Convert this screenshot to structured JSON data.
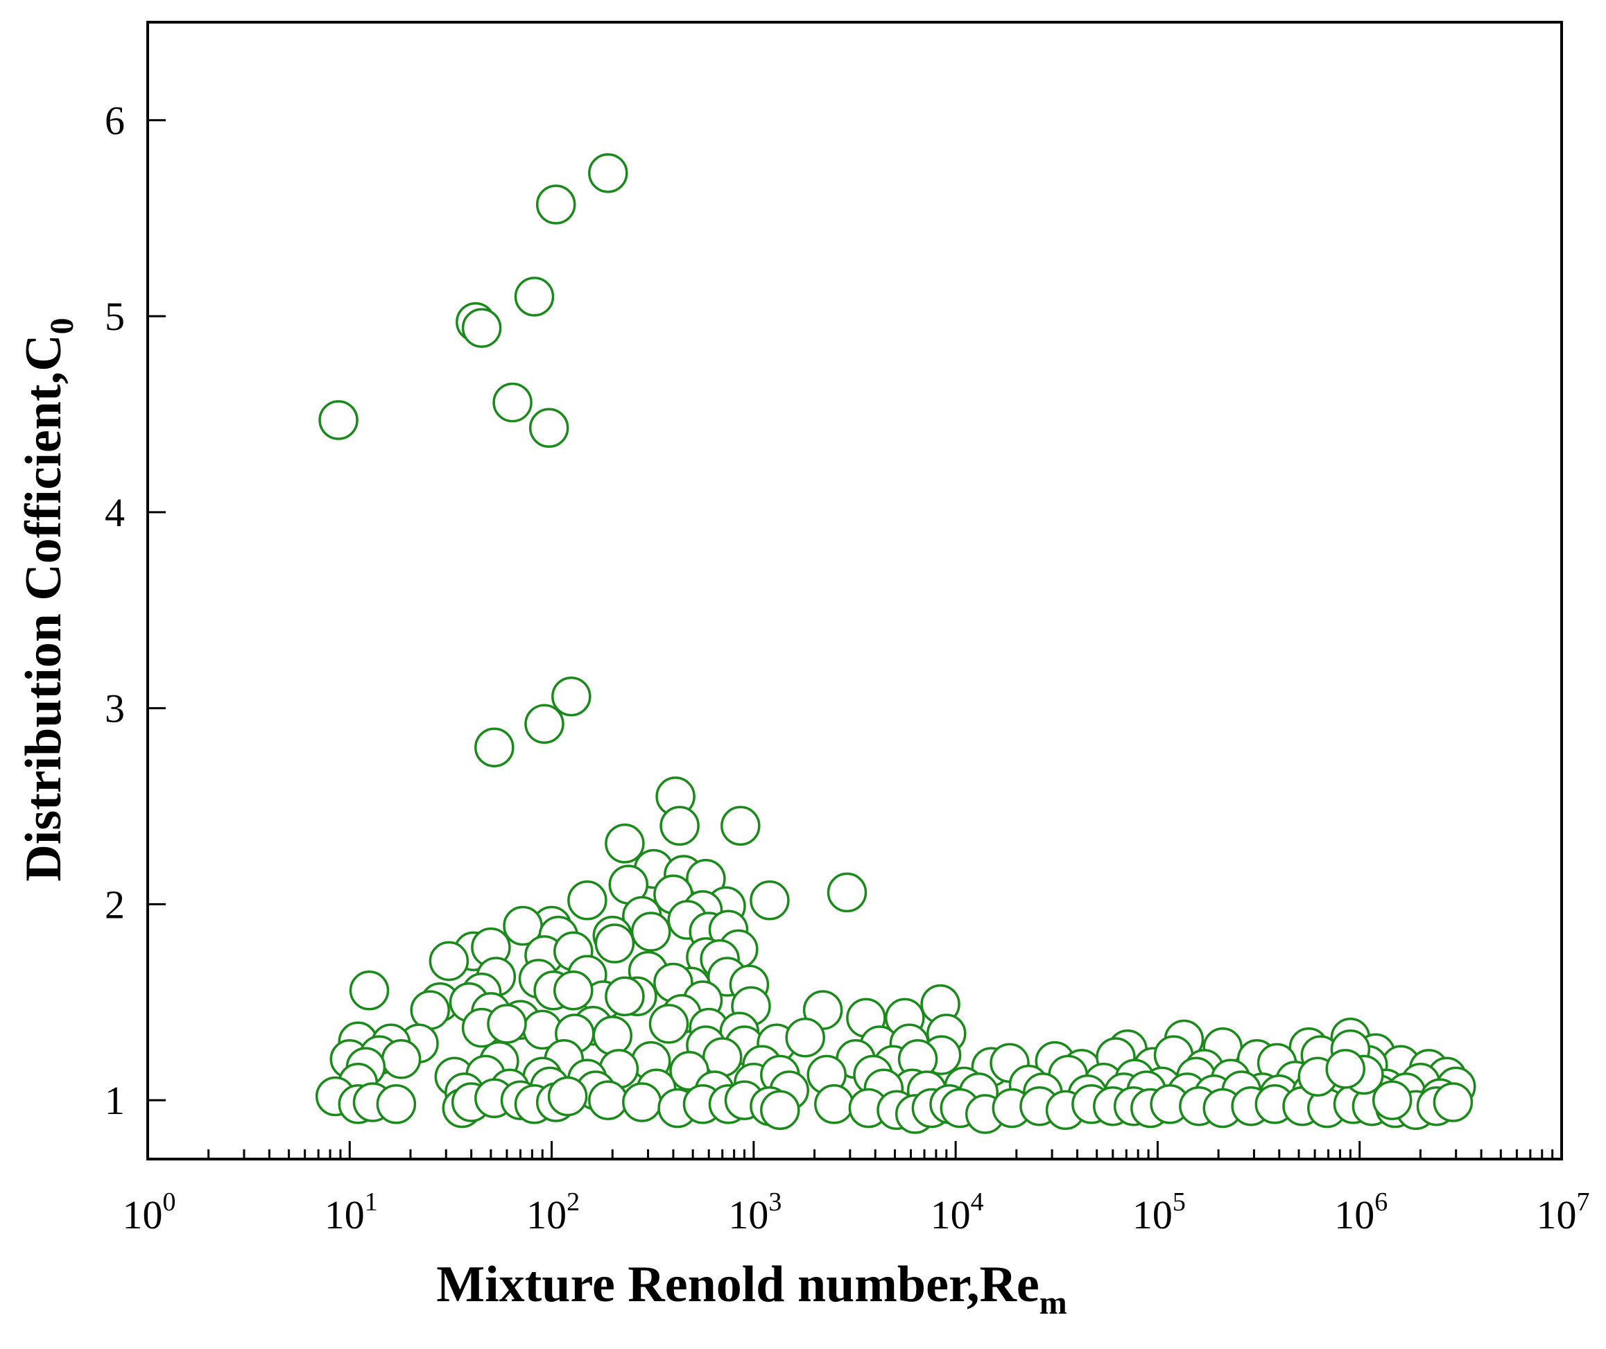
{
  "chart_data": {
    "type": "scatter",
    "title": "",
    "xlabel": "Mixture Renold number,Re",
    "xlabel_subscript": "m",
    "ylabel": "Distribution Cofficient,C",
    "ylabel_subscript": "0",
    "x_scale": "log",
    "xlim": [
      1,
      10000000
    ],
    "ylim": [
      0.7,
      6.5
    ],
    "x_ticks": [
      {
        "base": "10",
        "exp": "0",
        "value": 1
      },
      {
        "base": "10",
        "exp": "1",
        "value": 10
      },
      {
        "base": "10",
        "exp": "2",
        "value": 100
      },
      {
        "base": "10",
        "exp": "3",
        "value": 1000
      },
      {
        "base": "10",
        "exp": "4",
        "value": 10000
      },
      {
        "base": "10",
        "exp": "5",
        "value": 100000
      },
      {
        "base": "10",
        "exp": "6",
        "value": 1000000
      },
      {
        "base": "10",
        "exp": "7",
        "value": 10000000
      }
    ],
    "y_ticks": [
      {
        "label": "1",
        "value": 1
      },
      {
        "label": "2",
        "value": 2
      },
      {
        "label": "3",
        "value": 3
      },
      {
        "label": "4",
        "value": 4
      },
      {
        "label": "5",
        "value": 5
      },
      {
        "label": "6",
        "value": 6
      }
    ],
    "grid": false,
    "legend": "none",
    "marker": "open-circle",
    "marker_color": "#1a8a1a",
    "points": [
      [
        190,
        5.73
      ],
      [
        105,
        5.57
      ],
      [
        82,
        5.1
      ],
      [
        42,
        4.97
      ],
      [
        45,
        4.94
      ],
      [
        64,
        4.56
      ],
      [
        97,
        4.43
      ],
      [
        8.8,
        4.47
      ],
      [
        125,
        3.06
      ],
      [
        92,
        2.92
      ],
      [
        52,
        2.8
      ],
      [
        410,
        2.55
      ],
      [
        430,
        2.4
      ],
      [
        860,
        2.4
      ],
      [
        230,
        2.31
      ],
      [
        320,
        2.18
      ],
      [
        450,
        2.15
      ],
      [
        580,
        2.13
      ],
      [
        2900,
        2.06
      ],
      [
        240,
        2.1
      ],
      [
        400,
        2.05
      ],
      [
        150,
        2.02
      ],
      [
        1200,
        2.02
      ],
      [
        730,
        1.99
      ],
      [
        560,
        1.97
      ],
      [
        280,
        1.94
      ],
      [
        470,
        1.92
      ],
      [
        100,
        1.89
      ],
      [
        72,
        1.89
      ],
      [
        200,
        1.84
      ],
      [
        600,
        1.86
      ],
      [
        310,
        1.86
      ],
      [
        750,
        1.87
      ],
      [
        108,
        1.84
      ],
      [
        840,
        1.77
      ],
      [
        205,
        1.8
      ],
      [
        92,
        1.74
      ],
      [
        41,
        1.76
      ],
      [
        50,
        1.78
      ],
      [
        580,
        1.73
      ],
      [
        128,
        1.76
      ],
      [
        680,
        1.72
      ],
      [
        31,
        1.71
      ],
      [
        150,
        1.64
      ],
      [
        300,
        1.66
      ],
      [
        740,
        1.63
      ],
      [
        86,
        1.62
      ],
      [
        490,
        1.58
      ],
      [
        53,
        1.63
      ],
      [
        45,
        1.55
      ],
      [
        28,
        1.5
      ],
      [
        180,
        1.51
      ],
      [
        950,
        1.59
      ],
      [
        400,
        1.6
      ],
      [
        102,
        1.56
      ],
      [
        128,
        1.56
      ],
      [
        265,
        1.53
      ],
      [
        230,
        1.53
      ],
      [
        560,
        1.51
      ],
      [
        39,
        1.5
      ],
      [
        970,
        1.48
      ],
      [
        12.5,
        1.56
      ],
      [
        25,
        1.46
      ],
      [
        2200,
        1.46
      ],
      [
        8400,
        1.49
      ],
      [
        50,
        1.45
      ],
      [
        70,
        1.41
      ],
      [
        440,
        1.44
      ],
      [
        600,
        1.37
      ],
      [
        3600,
        1.42
      ],
      [
        5600,
        1.42
      ],
      [
        9000,
        1.34
      ],
      [
        90,
        1.36
      ],
      [
        160,
        1.38
      ],
      [
        45,
        1.37
      ],
      [
        380,
        1.39
      ],
      [
        60,
        1.39
      ],
      [
        850,
        1.35
      ],
      [
        200,
        1.33
      ],
      [
        130,
        1.34
      ],
      [
        22,
        1.29
      ],
      [
        11,
        1.3
      ],
      [
        16,
        1.29
      ],
      [
        580,
        1.28
      ],
      [
        900,
        1.28
      ],
      [
        1300,
        1.29
      ],
      [
        1800,
        1.32
      ],
      [
        4200,
        1.28
      ],
      [
        5900,
        1.29
      ],
      [
        8500,
        1.23
      ],
      [
        135000,
        1.31
      ],
      [
        71000,
        1.26
      ],
      [
        210000,
        1.27
      ],
      [
        560000,
        1.27
      ],
      [
        900000,
        1.32
      ],
      [
        1200000,
        1.24
      ],
      [
        1600000,
        1.18
      ],
      [
        10,
        1.21
      ],
      [
        14,
        1.23
      ],
      [
        18,
        1.21
      ],
      [
        55,
        1.2
      ],
      [
        115,
        1.21
      ],
      [
        310,
        1.2
      ],
      [
        700,
        1.22
      ],
      [
        1100,
        1.18
      ],
      [
        3200,
        1.21
      ],
      [
        4900,
        1.18
      ],
      [
        6500,
        1.21
      ],
      [
        15000,
        1.17
      ],
      [
        18500,
        1.19
      ],
      [
        31000,
        1.2
      ],
      [
        42000,
        1.16
      ],
      [
        62000,
        1.22
      ],
      [
        95000,
        1.17
      ],
      [
        120000,
        1.23
      ],
      [
        170000,
        1.16
      ],
      [
        310000,
        1.21
      ],
      [
        390000,
        1.19
      ],
      [
        640000,
        1.23
      ],
      [
        1100000,
        1.18
      ],
      [
        2200000,
        1.16
      ],
      [
        2700000,
        1.12
      ],
      [
        12,
        1.17
      ],
      [
        33,
        1.12
      ],
      [
        47,
        1.13
      ],
      [
        90,
        1.12
      ],
      [
        215,
        1.16
      ],
      [
        150,
        1.11
      ],
      [
        480,
        1.15
      ],
      [
        1000,
        1.09
      ],
      [
        1350,
        1.13
      ],
      [
        2300,
        1.13
      ],
      [
        3900,
        1.13
      ],
      [
        6100,
        1.06
      ],
      [
        11000,
        1.07
      ],
      [
        23000,
        1.08
      ],
      [
        36000,
        1.13
      ],
      [
        54000,
        1.09
      ],
      [
        77000,
        1.11
      ],
      [
        105000,
        1.07
      ],
      [
        155000,
        1.12
      ],
      [
        230000,
        1.11
      ],
      [
        330000,
        1.04
      ],
      [
        480000,
        1.1
      ],
      [
        750000,
        1.09
      ],
      [
        1000000,
        1.07
      ],
      [
        1350000,
        1.06
      ],
      [
        2000000,
        1.09
      ],
      [
        3000000,
        1.07
      ],
      [
        11,
        1.09
      ],
      [
        37,
        1.04
      ],
      [
        62,
        1.06
      ],
      [
        98,
        1.07
      ],
      [
        165,
        1.05
      ],
      [
        330,
        1.06
      ],
      [
        640,
        1.05
      ],
      [
        1500,
        1.05
      ],
      [
        4400,
        1.06
      ],
      [
        7200,
        1.05
      ],
      [
        13000,
        1.04
      ],
      [
        27000,
        1.04
      ],
      [
        45000,
        1.03
      ],
      [
        68000,
        1.04
      ],
      [
        88000,
        1.05
      ],
      [
        140000,
        1.04
      ],
      [
        190000,
        1.03
      ],
      [
        260000,
        1.05
      ],
      [
        400000,
        1.03
      ],
      [
        580000,
        1.04
      ],
      [
        820000,
        1.02
      ],
      [
        1250000,
        1.03
      ],
      [
        1700000,
        1.04
      ],
      [
        2500000,
        1.01
      ],
      [
        8.5,
        1.02
      ],
      [
        11,
        0.98
      ],
      [
        13,
        0.99
      ],
      [
        17,
        0.98
      ],
      [
        36,
        0.96
      ],
      [
        40,
        0.99
      ],
      [
        52,
        1.01
      ],
      [
        70,
        1.0
      ],
      [
        82,
        0.98
      ],
      [
        105,
        0.99
      ],
      [
        120,
        1.02
      ],
      [
        190,
        1.0
      ],
      [
        280,
        0.99
      ],
      [
        420,
        0.96
      ],
      [
        560,
        0.98
      ],
      [
        750,
        0.98
      ],
      [
        900,
        1.0
      ],
      [
        1200,
        0.97
      ],
      [
        1350,
        0.95
      ],
      [
        2500,
        0.98
      ],
      [
        3700,
        0.96
      ],
      [
        5100,
        0.95
      ],
      [
        6300,
        0.93
      ],
      [
        7600,
        0.96
      ],
      [
        9300,
        0.98
      ],
      [
        10500,
        0.96
      ],
      [
        14000,
        0.93
      ],
      [
        19000,
        0.96
      ],
      [
        26000,
        0.97
      ],
      [
        35000,
        0.95
      ],
      [
        47000,
        0.98
      ],
      [
        60000,
        0.97
      ],
      [
        76000,
        0.97
      ],
      [
        92000,
        0.96
      ],
      [
        115000,
        0.98
      ],
      [
        160000,
        0.97
      ],
      [
        210000,
        0.96
      ],
      [
        290000,
        0.97
      ],
      [
        380000,
        0.98
      ],
      [
        520000,
        0.97
      ],
      [
        690000,
        0.96
      ],
      [
        930000,
        0.98
      ],
      [
        1150000,
        0.97
      ],
      [
        1500000,
        0.96
      ],
      [
        1900000,
        0.95
      ],
      [
        2400000,
        0.97
      ],
      [
        2900000,
        0.99
      ],
      [
        1450000,
        1.0
      ],
      [
        900000,
        1.26
      ],
      [
        1050000,
        1.13
      ],
      [
        620000,
        1.12
      ],
      [
        850000,
        1.16
      ]
    ]
  }
}
